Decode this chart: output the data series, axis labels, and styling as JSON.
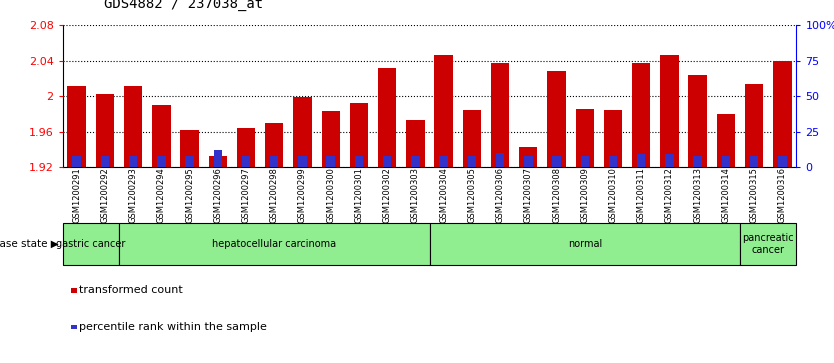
{
  "title": "GDS4882 / 237038_at",
  "samples": [
    "GSM1200291",
    "GSM1200292",
    "GSM1200293",
    "GSM1200294",
    "GSM1200295",
    "GSM1200296",
    "GSM1200297",
    "GSM1200298",
    "GSM1200299",
    "GSM1200300",
    "GSM1200301",
    "GSM1200302",
    "GSM1200303",
    "GSM1200304",
    "GSM1200305",
    "GSM1200306",
    "GSM1200307",
    "GSM1200308",
    "GSM1200309",
    "GSM1200310",
    "GSM1200311",
    "GSM1200312",
    "GSM1200313",
    "GSM1200314",
    "GSM1200315",
    "GSM1200316"
  ],
  "transformed_count": [
    2.012,
    2.002,
    2.012,
    1.99,
    1.962,
    1.932,
    1.964,
    1.97,
    1.999,
    1.983,
    1.992,
    2.032,
    1.973,
    2.046,
    1.984,
    2.037,
    1.943,
    2.028,
    1.985,
    1.984,
    2.037,
    2.046,
    2.024,
    1.98,
    2.014,
    2.04
  ],
  "percentile_rank": [
    8,
    8,
    8,
    8,
    8,
    12,
    8,
    8,
    8,
    8,
    8,
    8,
    8,
    8,
    8,
    10,
    8,
    8,
    8,
    8,
    9,
    9,
    8,
    8,
    8,
    8
  ],
  "disease_groups": [
    {
      "label": "gastric cancer",
      "start": 0,
      "end": 2
    },
    {
      "label": "hepatocellular carcinoma",
      "start": 2,
      "end": 13
    },
    {
      "label": "normal",
      "start": 13,
      "end": 24
    },
    {
      "label": "pancreatic\ncancer",
      "start": 24,
      "end": 26
    }
  ],
  "ymin": 1.92,
  "ymax": 2.08,
  "yticks": [
    1.92,
    1.96,
    2.0,
    2.04,
    2.08
  ],
  "right_yticks": [
    0,
    25,
    50,
    75,
    100
  ],
  "bar_color": "#CC0000",
  "blue_color": "#3333CC",
  "bar_width": 0.65,
  "blue_bar_width": 0.3,
  "group_color": "#90EE90",
  "bg_color": "#FFFFFF",
  "label_fontsize": 6,
  "title_fontsize": 10
}
